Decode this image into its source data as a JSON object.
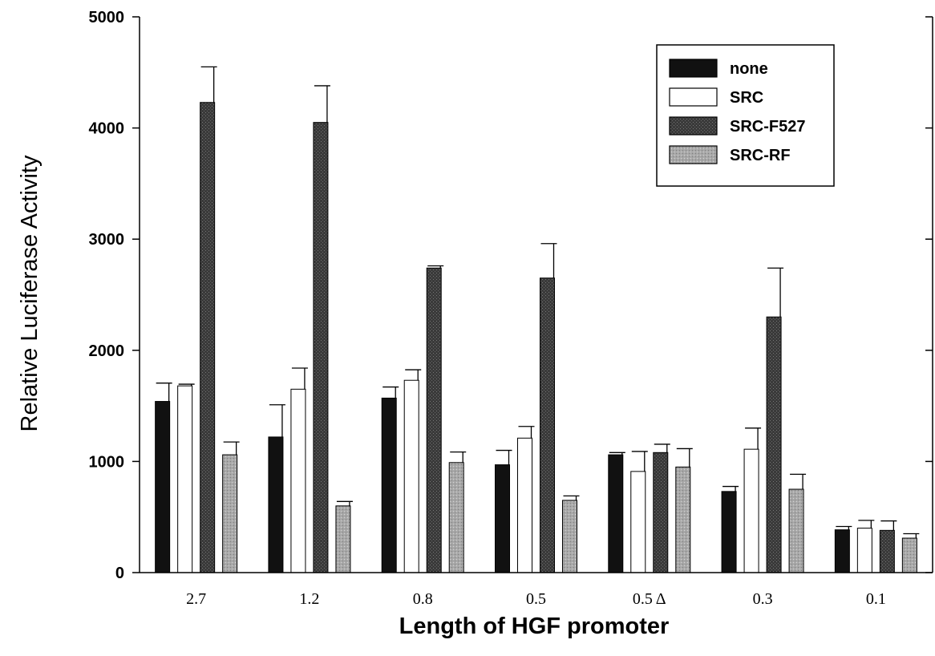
{
  "chart_data": {
    "type": "bar",
    "xlabel": "Length of HGF promoter",
    "ylabel": "Relative Luciferase Activity",
    "ylim": [
      0,
      5000
    ],
    "yticks": [
      "0",
      "1000",
      "2000",
      "3000",
      "4000",
      "5000"
    ],
    "categories": [
      "2.7",
      "1.2",
      "0.8",
      "0.5",
      "0.5 Δ",
      "0.3",
      "0.1"
    ],
    "legend_position": "top-right",
    "error_bars": true,
    "series": [
      {
        "name": "none",
        "color": "#111111",
        "values": [
          1540,
          1220,
          1570,
          970,
          1060,
          730,
          385
        ],
        "errors": [
          165,
          290,
          100,
          130,
          20,
          45,
          30
        ]
      },
      {
        "name": "SRC",
        "color": "#ffffff",
        "values": [
          1680,
          1650,
          1730,
          1210,
          910,
          1110,
          400
        ],
        "errors": [
          15,
          190,
          95,
          105,
          180,
          190,
          70
        ]
      },
      {
        "name": "SRC-F527",
        "color": "#3a3a3a",
        "values": [
          4230,
          4050,
          2740,
          2650,
          1080,
          2300,
          380
        ],
        "errors": [
          320,
          330,
          20,
          310,
          75,
          440,
          85
        ]
      },
      {
        "name": "SRC-RF",
        "color": "#a8a8a8",
        "values": [
          1060,
          600,
          990,
          650,
          950,
          750,
          310
        ],
        "errors": [
          115,
          40,
          95,
          40,
          165,
          135,
          40
        ]
      }
    ]
  }
}
